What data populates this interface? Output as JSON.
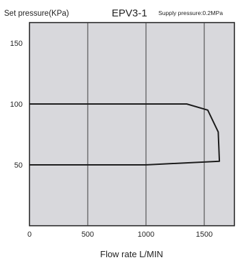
{
  "chart_data": {
    "type": "line",
    "title": "EPV3-1",
    "ylabel": "Set pressure(KPa)",
    "xlabel": "Flow rate L/MIN",
    "annotation": "Supply pressure:0.2MPa",
    "xlim": [
      0,
      1800
    ],
    "ylim": [
      0,
      170
    ],
    "x_ticks": [
      "0",
      "500",
      "1000",
      "1500"
    ],
    "y_ticks": [
      "50",
      "100",
      "150"
    ],
    "grid": "vertical",
    "background": "#d8d8dc",
    "line_color": "#1a1a1a",
    "series": [
      {
        "x": [
          0,
          1350,
          1530,
          1620,
          1630,
          1000,
          0
        ],
        "y": [
          100,
          100,
          95,
          77,
          53,
          50,
          50
        ]
      }
    ]
  }
}
